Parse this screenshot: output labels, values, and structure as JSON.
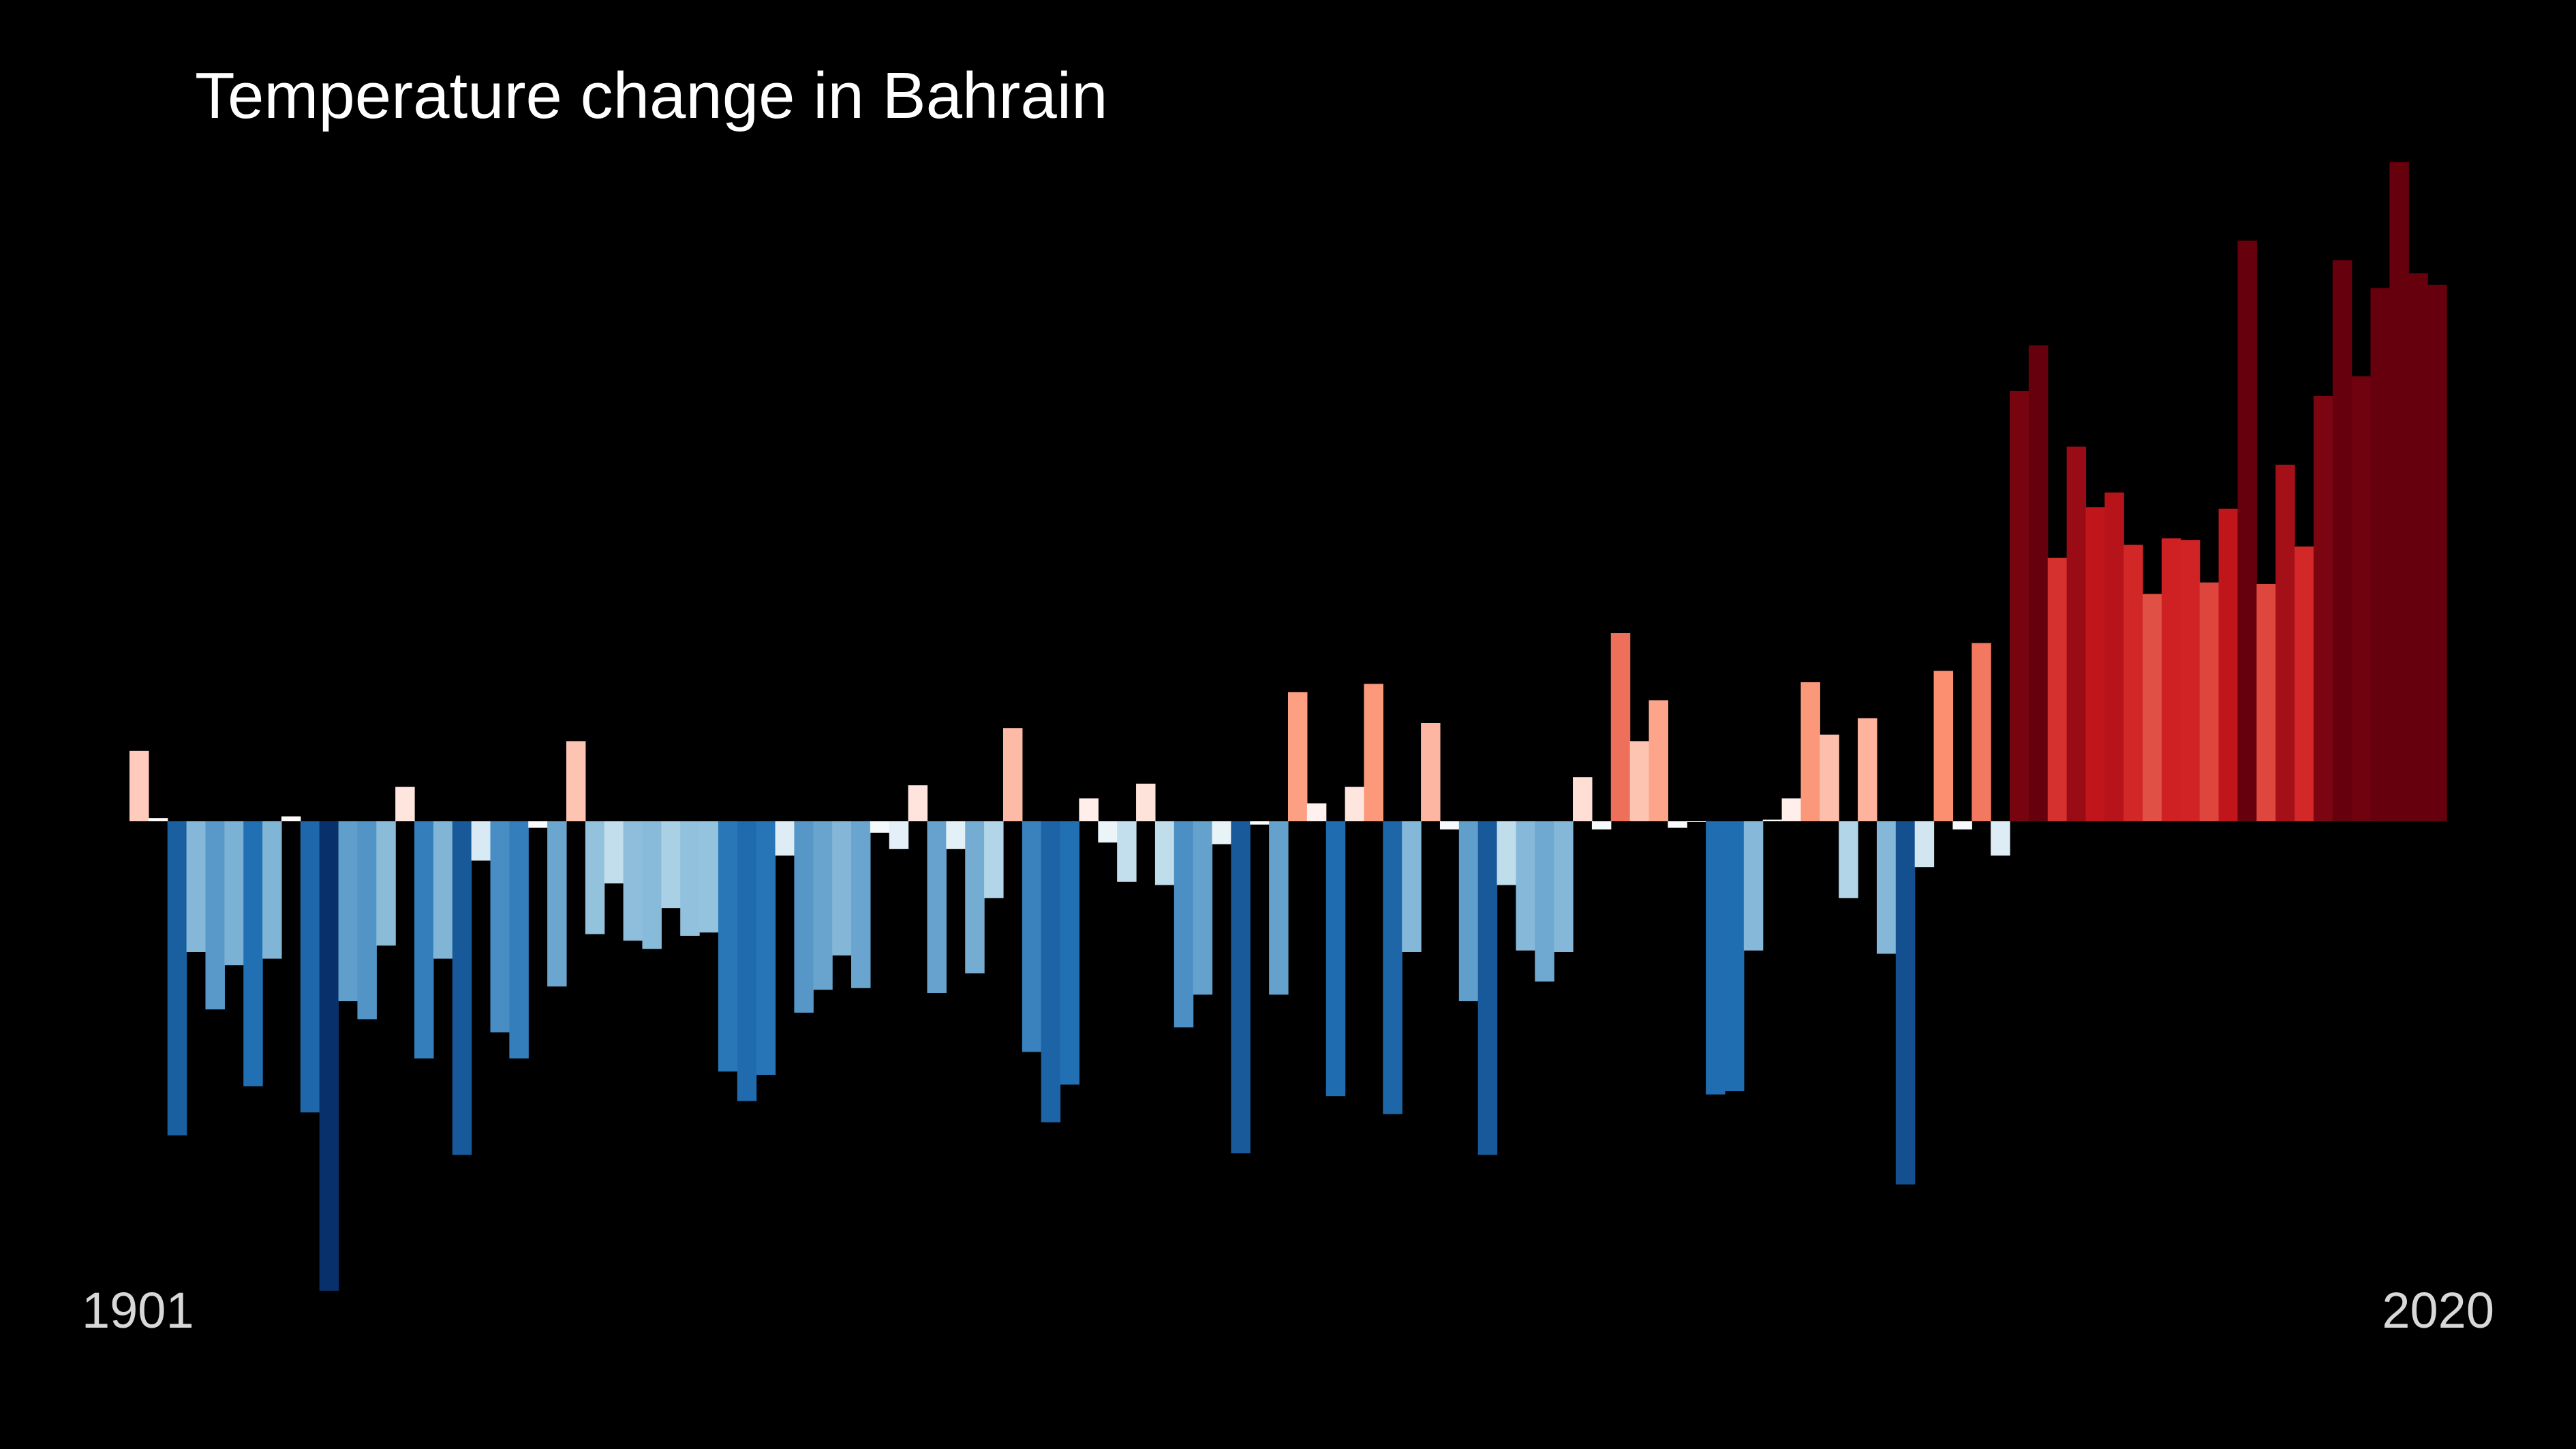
{
  "chart_data": {
    "type": "bar",
    "title": "Temperature change in Bahrain",
    "x_start": 1901,
    "x_end": 2020,
    "tick_labels": [
      "1901",
      "2020"
    ],
    "values": [
      0.43,
      0.02,
      -1.92,
      -0.8,
      -1.15,
      -0.88,
      -1.62,
      -0.84,
      0.03,
      -1.78,
      -2.87,
      -1.1,
      -1.21,
      -0.76,
      0.21,
      -1.45,
      -0.84,
      -2.04,
      -0.24,
      -1.29,
      -1.45,
      -0.04,
      -1.01,
      0.49,
      -0.69,
      -0.38,
      -0.73,
      -0.78,
      -0.53,
      -0.7,
      -0.68,
      -1.53,
      -1.71,
      -1.55,
      -0.21,
      -1.17,
      -1.03,
      -0.82,
      -1.02,
      -0.07,
      -0.17,
      0.22,
      -1.05,
      -0.17,
      -0.93,
      -0.47,
      0.57,
      -1.41,
      -1.84,
      -1.61,
      0.14,
      -0.13,
      -0.37,
      0.23,
      -0.39,
      -1.26,
      -1.06,
      -0.14,
      -2.03,
      -0.02,
      -1.06,
      0.79,
      0.11,
      -1.68,
      0.21,
      0.84,
      -1.79,
      -0.8,
      0.6,
      -0.05,
      -1.1,
      -2.04,
      -0.39,
      -0.79,
      -0.98,
      -0.8,
      0.27,
      -0.05,
      1.15,
      0.49,
      0.74,
      -0.04,
      0.0,
      -1.67,
      -1.65,
      -0.79,
      0.01,
      0.14,
      0.85,
      0.53,
      -0.47,
      0.63,
      -0.81,
      -2.22,
      -0.28,
      0.92,
      -0.05,
      1.09,
      -0.21,
      2.63,
      2.91,
      1.61,
      2.29,
      1.92,
      2.01,
      1.69,
      1.39,
      1.73,
      1.72,
      1.46,
      1.91,
      3.55,
      1.45,
      2.18,
      1.68,
      2.6,
      3.43,
      2.72,
      3.26,
      4.03,
      3.35,
      3.28
    ],
    "ylim": [
      -3.2,
      4.4
    ],
    "colors": {
      "cold_extreme": "#08306b",
      "cold": "#2171b5",
      "cool": "#9ecae1",
      "neutral": "#ffffff",
      "warm": "#fc9272",
      "hot": "#cb181d",
      "hot_extreme": "#67000d"
    }
  }
}
